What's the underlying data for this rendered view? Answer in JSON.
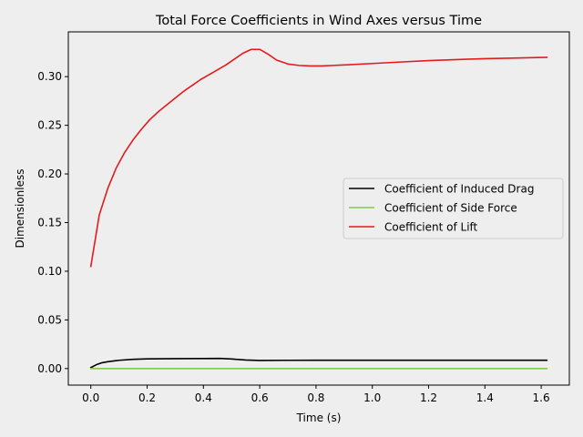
{
  "figure": {
    "background": "#eeeeee"
  },
  "chart_data": {
    "type": "line",
    "title": "Total Force Coefficients in Wind Axes versus Time",
    "xlabel": "Time (s)",
    "ylabel": "Dimensionless",
    "xlim": [
      -0.08,
      1.7
    ],
    "ylim": [
      -0.017,
      0.346
    ],
    "xticks": [
      0.0,
      0.2,
      0.4,
      0.6,
      0.8,
      1.0,
      1.2,
      1.4,
      1.6
    ],
    "xtick_labels": [
      "0.0",
      "0.2",
      "0.4",
      "0.6",
      "0.8",
      "1.0",
      "1.2",
      "1.4",
      "1.6"
    ],
    "yticks": [
      0.0,
      0.05,
      0.1,
      0.15,
      0.2,
      0.25,
      0.3
    ],
    "ytick_labels": [
      "0.00",
      "0.05",
      "0.10",
      "0.15",
      "0.20",
      "0.25",
      "0.30"
    ],
    "grid": false,
    "legend_position": "center-right",
    "series": [
      {
        "name": "Coefficient of Induced Drag",
        "color": "#000000",
        "x": [
          0.0,
          0.02,
          0.04,
          0.06,
          0.1,
          0.15,
          0.2,
          0.3,
          0.4,
          0.46,
          0.5,
          0.55,
          0.6,
          0.7,
          0.8,
          1.0,
          1.2,
          1.4,
          1.62
        ],
        "y": [
          0.001,
          0.004,
          0.006,
          0.007,
          0.0085,
          0.0095,
          0.01,
          0.0102,
          0.0103,
          0.0104,
          0.0098,
          0.0088,
          0.0083,
          0.0085,
          0.0086,
          0.0086,
          0.0086,
          0.0086,
          0.0086
        ]
      },
      {
        "name": "Coefficient of Side Force",
        "color": "#80c850",
        "x": [
          0.0,
          0.4,
          0.8,
          1.2,
          1.62
        ],
        "y": [
          0.0,
          0.0,
          0.0,
          0.0,
          0.0
        ]
      },
      {
        "name": "Coefficient of Lift",
        "color": "#e41a1c",
        "x": [
          0.0,
          0.03,
          0.06,
          0.09,
          0.12,
          0.15,
          0.18,
          0.21,
          0.24,
          0.27,
          0.3,
          0.33,
          0.36,
          0.39,
          0.42,
          0.45,
          0.48,
          0.51,
          0.54,
          0.57,
          0.6,
          0.63,
          0.66,
          0.7,
          0.74,
          0.78,
          0.82,
          0.86,
          0.9,
          1.0,
          1.1,
          1.2,
          1.3,
          1.4,
          1.5,
          1.62
        ],
        "y": [
          0.105,
          0.158,
          0.185,
          0.206,
          0.222,
          0.235,
          0.246,
          0.256,
          0.264,
          0.271,
          0.278,
          0.285,
          0.291,
          0.297,
          0.302,
          0.307,
          0.312,
          0.318,
          0.324,
          0.328,
          0.328,
          0.323,
          0.317,
          0.313,
          0.3115,
          0.311,
          0.311,
          0.3115,
          0.312,
          0.3135,
          0.315,
          0.3165,
          0.3175,
          0.3185,
          0.319,
          0.3198
        ]
      }
    ]
  }
}
